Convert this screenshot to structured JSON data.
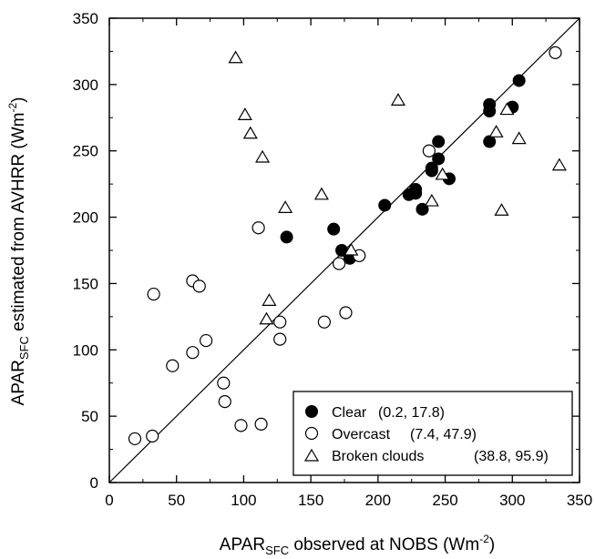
{
  "chart_data": {
    "type": "scatter",
    "xlabel": {
      "main": "APAR",
      "sub": "SFC",
      "rest": " observed at NOBS (Wm",
      "exp": "-2",
      "close": ")"
    },
    "ylabel": {
      "main": "APAR",
      "sub": "SFC",
      "rest": " estimated from AVHRR (Wm",
      "exp": "-2",
      "close": ")"
    },
    "xlim": [
      0,
      350
    ],
    "ylim": [
      0,
      350
    ],
    "xticks": [
      "0",
      "50",
      "100",
      "150",
      "200",
      "250",
      "300",
      "350"
    ],
    "yticks": [
      "0",
      "50",
      "100",
      "150",
      "200",
      "250",
      "300",
      "350"
    ],
    "grid": false,
    "legend_position": "bottom-right",
    "reference_line": {
      "x": [
        0,
        350
      ],
      "y": [
        0,
        350
      ]
    },
    "series": [
      {
        "name": "Clear",
        "stats": "(0.2, 17.8)",
        "marker": "filled-circle",
        "points": [
          [
            132,
            185
          ],
          [
            167,
            191
          ],
          [
            173,
            175
          ],
          [
            179,
            169
          ],
          [
            205,
            209
          ],
          [
            223,
            217
          ],
          [
            228,
            221
          ],
          [
            228,
            218
          ],
          [
            233,
            206
          ],
          [
            240,
            235
          ],
          [
            240,
            237
          ],
          [
            245,
            244
          ],
          [
            245,
            257
          ],
          [
            253,
            229
          ],
          [
            283,
            285
          ],
          [
            283,
            280
          ],
          [
            283,
            257
          ],
          [
            300,
            283
          ],
          [
            305,
            303
          ]
        ]
      },
      {
        "name": "Overcast",
        "stats": "(7.4, 47.9)",
        "marker": "open-circle",
        "points": [
          [
            19,
            33
          ],
          [
            32,
            35
          ],
          [
            33,
            142
          ],
          [
            47,
            88
          ],
          [
            62,
            98
          ],
          [
            62,
            152
          ],
          [
            67,
            148
          ],
          [
            72,
            107
          ],
          [
            85,
            75
          ],
          [
            86,
            61
          ],
          [
            98,
            43
          ],
          [
            111,
            192
          ],
          [
            113,
            44
          ],
          [
            127,
            108
          ],
          [
            127,
            121
          ],
          [
            160,
            121
          ],
          [
            171,
            165
          ],
          [
            176,
            128
          ],
          [
            186,
            171
          ],
          [
            238,
            250
          ],
          [
            332,
            324
          ]
        ]
      },
      {
        "name": "Broken clouds",
        "stats": "(38.8, 95.9)",
        "marker": "open-triangle",
        "points": [
          [
            94,
            320
          ],
          [
            101,
            277
          ],
          [
            105,
            263
          ],
          [
            114,
            245
          ],
          [
            117,
            123
          ],
          [
            119,
            137
          ],
          [
            131,
            207
          ],
          [
            158,
            217
          ],
          [
            180,
            175
          ],
          [
            215,
            288
          ],
          [
            240,
            212
          ],
          [
            248,
            232
          ],
          [
            288,
            264
          ],
          [
            292,
            205
          ],
          [
            296,
            281
          ],
          [
            305,
            259
          ],
          [
            335,
            239
          ]
        ]
      }
    ]
  }
}
